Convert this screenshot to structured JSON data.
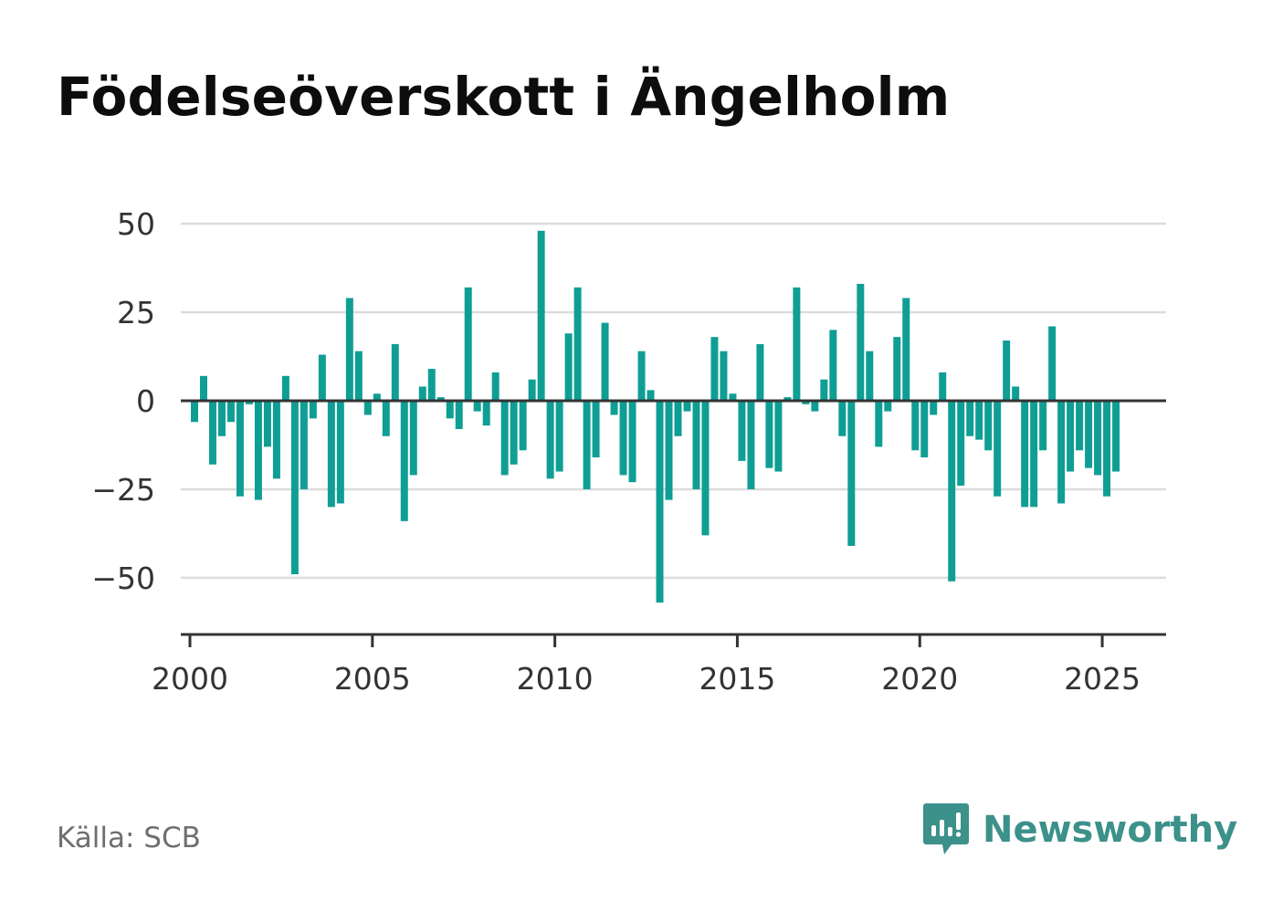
{
  "title": "Födelseöverskott i Ängelholm",
  "source": "Källa: SCB",
  "brand": {
    "name": "Newsworthy",
    "color": "#3c918a",
    "icon": "newsworthy-logo-icon"
  },
  "colors": {
    "bar": "#0f9e94",
    "grid": "#dcdcdc",
    "axis": "#333333"
  },
  "chart_data": {
    "type": "bar",
    "title": "Födelseöverskott i Ängelholm",
    "xlabel": "",
    "ylabel": "",
    "grid": true,
    "xlim": [
      1999.75,
      2026.75
    ],
    "ylim": [
      -66,
      50
    ],
    "yticks": [
      50,
      25,
      0,
      -25,
      -50
    ],
    "ytick_labels": [
      "50",
      "25",
      "0",
      "−25",
      "−50"
    ],
    "xticks": [
      2000,
      2005,
      2010,
      2015,
      2020,
      2025
    ],
    "xtick_labels": [
      "2000",
      "2005",
      "2010",
      "2015",
      "2020",
      "2025"
    ],
    "frequency": "quarterly",
    "start_period": "2000 Q1",
    "values": [
      -6,
      7,
      -18,
      -10,
      -6,
      -27,
      -1,
      -28,
      -13,
      -22,
      7,
      -49,
      -25,
      -5,
      13,
      -30,
      -29,
      29,
      14,
      -4,
      2,
      -10,
      16,
      -34,
      -21,
      4,
      9,
      1,
      -5,
      -8,
      32,
      -3,
      -7,
      8,
      -21,
      -18,
      -14,
      6,
      48,
      -22,
      -20,
      19,
      32,
      -25,
      -16,
      22,
      -4,
      -21,
      -23,
      14,
      3,
      -57,
      -28,
      -10,
      -3,
      -25,
      -38,
      18,
      14,
      2,
      -17,
      -25,
      16,
      -19,
      -20,
      1,
      32,
      -1,
      -3,
      6,
      20,
      -10,
      -41,
      33,
      14,
      -13,
      -3,
      18,
      29,
      -14,
      -16,
      -4,
      8,
      -51,
      -24,
      -10,
      -11,
      -14,
      -27,
      17,
      4,
      -30,
      -30,
      -14,
      21,
      -29,
      -20,
      -14,
      -19,
      -21,
      -27,
      -20
    ]
  }
}
